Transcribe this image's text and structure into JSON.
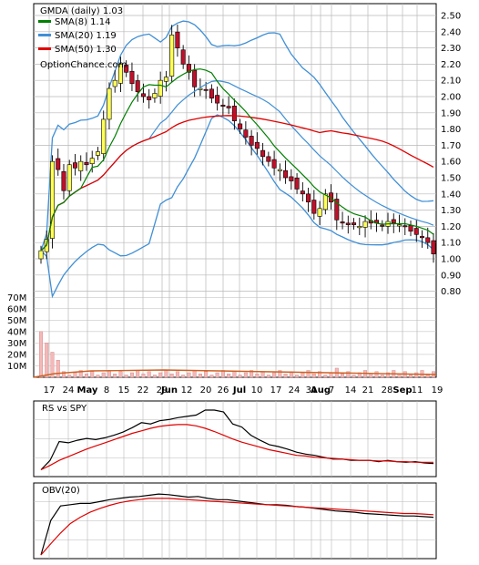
{
  "chart_data": [
    {
      "type": "candlestick",
      "title": "GMDA (daily) 1.03",
      "legend": [
        {
          "name": "SMA(8) 1.14",
          "color": "#008000"
        },
        {
          "name": "SMA(20) 1.19",
          "color": "#3f8fd6"
        },
        {
          "name": "SMA(50) 1.30",
          "color": "#e00000"
        }
      ],
      "watermark": "OptionChance.com",
      "y_ticks": [
        "2.50",
        "2.40",
        "2.30",
        "2.20",
        "2.10",
        "2.00",
        "1.90",
        "1.80",
        "1.70",
        "1.60",
        "1.50",
        "1.40",
        "1.30",
        "1.20",
        "1.10",
        "1.00",
        "0.90",
        "0.80"
      ],
      "ylim": [
        0.7,
        2.52
      ],
      "volume_ticks": [
        "70M",
        "60M",
        "50M",
        "40M",
        "30M",
        "20M",
        "10M"
      ],
      "volume_lim": [
        0,
        75
      ],
      "x_ticks": [
        "17",
        "24",
        "May",
        "8",
        "15",
        "22",
        "29",
        "Jun",
        "12",
        "20",
        "26",
        "Jul",
        "10",
        "17",
        "24",
        "31",
        "Aug",
        "7",
        "14",
        "21",
        "28",
        "Sep",
        "11",
        "19"
      ],
      "bands_label": "Bollinger(20)",
      "grid": true,
      "legend_position": "top-left",
      "close_series": [
        1.05,
        1.12,
        1.6,
        1.55,
        1.42,
        1.58,
        1.56,
        1.6,
        1.58,
        1.62,
        1.66,
        1.86,
        2.05,
        2.1,
        2.2,
        2.15,
        2.08,
        2.03,
        2.0,
        1.98,
        2.02,
        2.1,
        2.12,
        2.38,
        2.3,
        2.2,
        2.15,
        2.06,
        2.05,
        2.04,
        1.99,
        1.96,
        1.94,
        1.93,
        1.85,
        1.8,
        1.75,
        1.7,
        1.68,
        1.63,
        1.6,
        1.56,
        1.55,
        1.5,
        1.48,
        1.43,
        1.4,
        1.35,
        1.28,
        1.31,
        1.4,
        1.35,
        1.24,
        1.22,
        1.21,
        1.21,
        1.2,
        1.23,
        1.22,
        1.22,
        1.2,
        1.23,
        1.22,
        1.21,
        1.2,
        1.17,
        1.15,
        1.13,
        1.1,
        1.03
      ]
    },
    {
      "type": "line",
      "title": "RS vs SPY",
      "series": [
        {
          "name": "RS vs SPY",
          "color": "#000000",
          "values": [
            0.05,
            0.2,
            0.5,
            0.48,
            0.52,
            0.55,
            0.53,
            0.56,
            0.6,
            0.65,
            0.72,
            0.8,
            0.78,
            0.83,
            0.85,
            0.88,
            0.9,
            0.92,
            1.0,
            1.0,
            0.97,
            0.78,
            0.73,
            0.6,
            0.52,
            0.45,
            0.42,
            0.38,
            0.33,
            0.3,
            0.28,
            0.25,
            0.22,
            0.22,
            0.2,
            0.2,
            0.2,
            0.18,
            0.2,
            0.18,
            0.17,
            0.18,
            0.16,
            0.15
          ]
        },
        {
          "name": "",
          "color": "#e00000",
          "values": [
            0.05,
            0.12,
            0.2,
            0.26,
            0.32,
            0.38,
            0.43,
            0.48,
            0.53,
            0.58,
            0.63,
            0.67,
            0.71,
            0.74,
            0.76,
            0.77,
            0.77,
            0.75,
            0.71,
            0.66,
            0.6,
            0.54,
            0.49,
            0.45,
            0.41,
            0.37,
            0.34,
            0.31,
            0.28,
            0.27,
            0.25,
            0.24,
            0.23,
            0.22,
            0.21,
            0.2,
            0.2,
            0.19,
            0.19,
            0.18,
            0.18,
            0.17,
            0.17,
            0.17
          ]
        }
      ]
    },
    {
      "type": "line",
      "title": "OBV(20)",
      "series": [
        {
          "name": "OBV(20)",
          "color": "#000000",
          "values": [
            0.0,
            0.55,
            0.78,
            0.8,
            0.82,
            0.82,
            0.85,
            0.88,
            0.9,
            0.92,
            0.93,
            0.95,
            0.97,
            0.96,
            0.94,
            0.92,
            0.93,
            0.9,
            0.88,
            0.88,
            0.86,
            0.84,
            0.82,
            0.8,
            0.8,
            0.79,
            0.77,
            0.76,
            0.74,
            0.72,
            0.7,
            0.69,
            0.68,
            0.66,
            0.65,
            0.64,
            0.63,
            0.62,
            0.62,
            0.61,
            0.6
          ]
        },
        {
          "name": "",
          "color": "#e00000",
          "values": [
            0.0,
            0.18,
            0.35,
            0.5,
            0.6,
            0.68,
            0.74,
            0.79,
            0.83,
            0.86,
            0.88,
            0.9,
            0.9,
            0.9,
            0.89,
            0.88,
            0.87,
            0.86,
            0.85,
            0.84,
            0.83,
            0.82,
            0.81,
            0.8,
            0.79,
            0.78,
            0.77,
            0.76,
            0.75,
            0.74,
            0.73,
            0.72,
            0.71,
            0.7,
            0.69,
            0.68,
            0.67,
            0.66,
            0.66,
            0.65,
            0.64
          ]
        }
      ]
    }
  ],
  "colors": {
    "up": "#ffff55",
    "down": "#c0102a",
    "sma8": "#008000",
    "sma20": "#3f8fd6",
    "sma50": "#e00000",
    "grid": "#b8b8b8",
    "bandfill": "#cfe4f7"
  }
}
